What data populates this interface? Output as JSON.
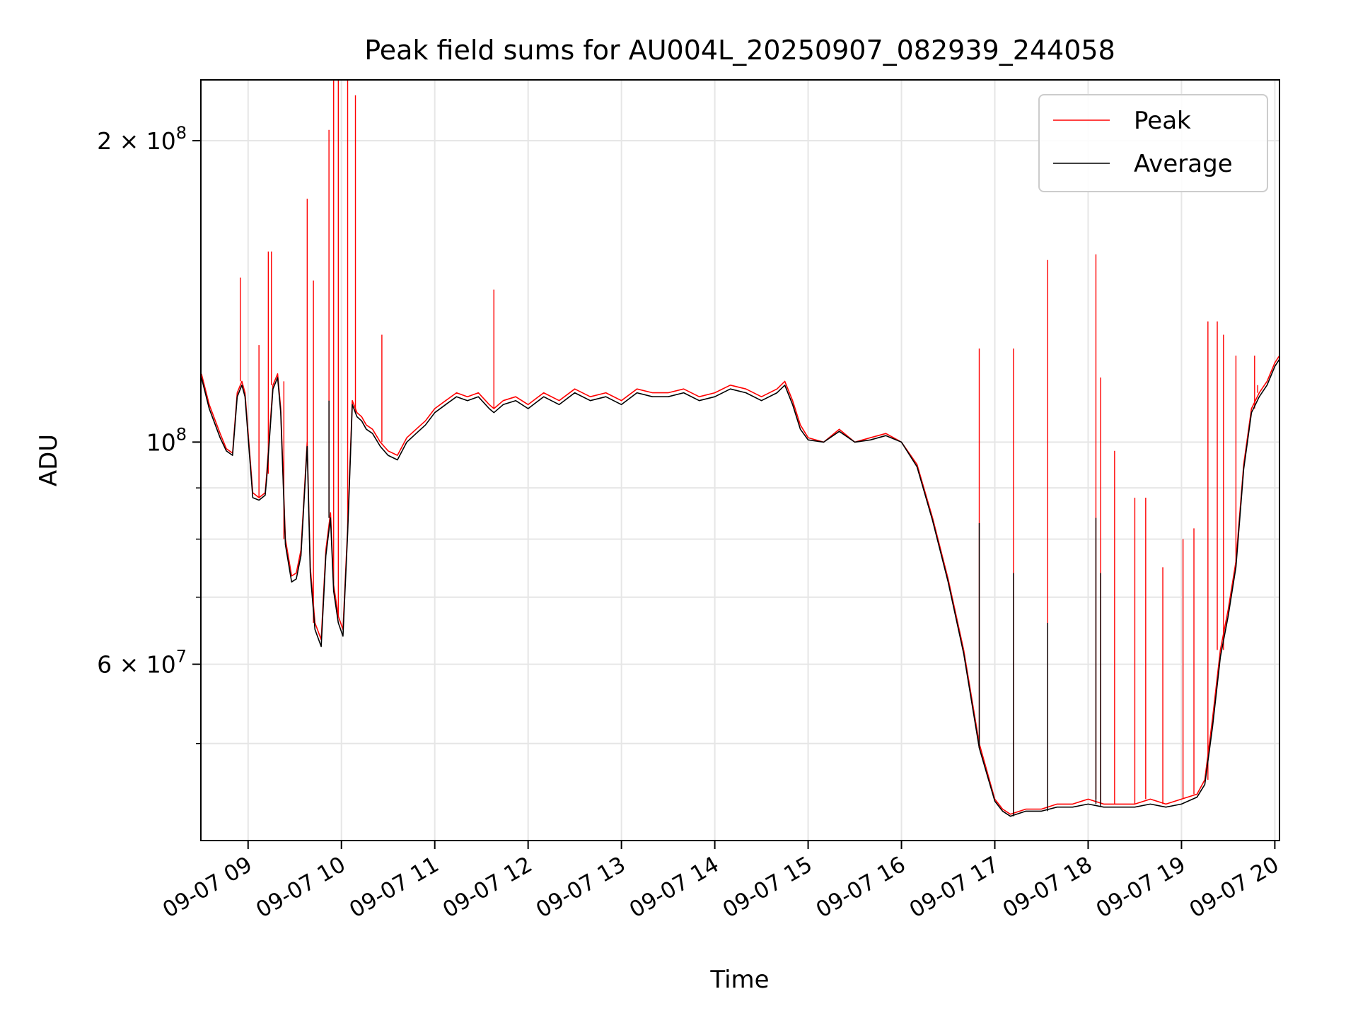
{
  "chart_data": {
    "type": "line",
    "title": "Peak field sums for AU004L_20250907_082939_244058",
    "xlabel": "Time",
    "ylabel": "ADU",
    "y_scale": "log",
    "grid": true,
    "legend_position": "top-right",
    "xlim": [
      "2025-09-07 08:29:39",
      "2025-09-07 20:03:00"
    ],
    "ylim": [
      40000000,
      230000000
    ],
    "x_ticks": [
      {
        "label": "09-07 09",
        "value": "2025-09-07 09:00"
      },
      {
        "label": "09-07 10",
        "value": "2025-09-07 10:00"
      },
      {
        "label": "09-07 11",
        "value": "2025-09-07 11:00"
      },
      {
        "label": "09-07 12",
        "value": "2025-09-07 12:00"
      },
      {
        "label": "09-07 13",
        "value": "2025-09-07 13:00"
      },
      {
        "label": "09-07 14",
        "value": "2025-09-07 14:00"
      },
      {
        "label": "09-07 15",
        "value": "2025-09-07 15:00"
      },
      {
        "label": "09-07 16",
        "value": "2025-09-07 16:00"
      },
      {
        "label": "09-07 17",
        "value": "2025-09-07 17:00"
      },
      {
        "label": "09-07 18",
        "value": "2025-09-07 18:00"
      },
      {
        "label": "09-07 19",
        "value": "2025-09-07 19:00"
      },
      {
        "label": "09-07 20",
        "value": "2025-09-07 20:00"
      }
    ],
    "y_ticks": [
      {
        "mantissa": "2",
        "times": "×",
        "base": "10",
        "exp": "8",
        "value": 200000000
      },
      {
        "mantissa": "",
        "times": "",
        "base": "10",
        "exp": "8",
        "value": 100000000
      },
      {
        "mantissa": "6",
        "times": "×",
        "base": "10",
        "exp": "7",
        "value": 60000000
      }
    ],
    "y_minor_ticks": [
      50000000,
      70000000,
      80000000,
      90000000
    ],
    "series": [
      {
        "name": "Peak",
        "color": "#ff0000",
        "x": [
          "2025-09-07 08:30",
          "2025-09-07 08:35",
          "2025-09-07 08:42",
          "2025-09-07 08:46",
          "2025-09-07 08:50",
          "2025-09-07 08:53",
          "2025-09-07 08:56",
          "2025-09-07 08:58",
          "2025-09-07 09:03",
          "2025-09-07 09:07",
          "2025-09-07 09:11",
          "2025-09-07 09:12",
          "2025-09-07 09:16",
          "2025-09-07 09:19",
          "2025-09-07 09:21",
          "2025-09-07 09:24",
          "2025-09-07 09:28",
          "2025-09-07 09:31",
          "2025-09-07 09:34",
          "2025-09-07 09:38",
          "2025-09-07 09:40",
          "2025-09-07 09:43",
          "2025-09-07 09:47",
          "2025-09-07 09:50",
          "2025-09-07 09:53",
          "2025-09-07 09:55",
          "2025-09-07 09:58",
          "2025-09-07 10:01",
          "2025-09-07 10:04",
          "2025-09-07 10:07",
          "2025-09-07 10:10",
          "2025-09-07 10:13",
          "2025-09-07 10:16",
          "2025-09-07 10:20",
          "2025-09-07 10:25",
          "2025-09-07 10:30",
          "2025-09-07 10:36",
          "2025-09-07 10:42",
          "2025-09-07 10:48",
          "2025-09-07 10:54",
          "2025-09-07 11:00",
          "2025-09-07 11:07",
          "2025-09-07 11:14",
          "2025-09-07 11:21",
          "2025-09-07 11:28",
          "2025-09-07 11:35",
          "2025-09-07 11:38",
          "2025-09-07 11:44",
          "2025-09-07 11:52",
          "2025-09-07 12:00",
          "2025-09-07 12:10",
          "2025-09-07 12:20",
          "2025-09-07 12:30",
          "2025-09-07 12:40",
          "2025-09-07 12:50",
          "2025-09-07 13:00",
          "2025-09-07 13:10",
          "2025-09-07 13:20",
          "2025-09-07 13:30",
          "2025-09-07 13:40",
          "2025-09-07 13:50",
          "2025-09-07 14:00",
          "2025-09-07 14:10",
          "2025-09-07 14:20",
          "2025-09-07 14:30",
          "2025-09-07 14:40",
          "2025-09-07 14:45",
          "2025-09-07 14:50",
          "2025-09-07 14:55",
          "2025-09-07 15:00",
          "2025-09-07 15:10",
          "2025-09-07 15:20",
          "2025-09-07 15:30",
          "2025-09-07 15:40",
          "2025-09-07 15:50",
          "2025-09-07 16:00",
          "2025-09-07 16:10",
          "2025-09-07 16:20",
          "2025-09-07 16:30",
          "2025-09-07 16:40",
          "2025-09-07 16:50",
          "2025-09-07 17:00",
          "2025-09-07 17:05",
          "2025-09-07 17:10",
          "2025-09-07 17:20",
          "2025-09-07 17:30",
          "2025-09-07 17:40",
          "2025-09-07 17:50",
          "2025-09-07 18:00",
          "2025-09-07 18:10",
          "2025-09-07 18:20",
          "2025-09-07 18:30",
          "2025-09-07 18:40",
          "2025-09-07 18:50",
          "2025-09-07 19:00",
          "2025-09-07 19:10",
          "2025-09-07 19:15",
          "2025-09-07 19:20",
          "2025-09-07 19:25",
          "2025-09-07 19:30",
          "2025-09-07 19:35",
          "2025-09-07 19:40",
          "2025-09-07 19:45",
          "2025-09-07 19:50",
          "2025-09-07 19:55",
          "2025-09-07 20:00",
          "2025-09-07 20:03"
        ],
        "values": [
          117000000,
          109000000,
          102000000,
          98500000,
          97500000,
          112000000,
          115000000,
          112000000,
          89000000,
          88000000,
          89000000,
          93000000,
          114000000,
          117000000,
          108000000,
          80000000,
          73500000,
          74000000,
          78000000,
          100000000,
          75000000,
          66000000,
          63500000,
          78000000,
          85000000,
          72000000,
          67000000,
          65000000,
          82000000,
          110000000,
          107000000,
          106000000,
          104000000,
          103000000,
          100000000,
          98000000,
          97000000,
          101000000,
          103000000,
          105000000,
          108000000,
          110000000,
          112000000,
          111000000,
          112000000,
          109000000,
          108000000,
          110000000,
          111000000,
          109000000,
          112000000,
          110000000,
          113000000,
          111000000,
          112000000,
          110000000,
          113000000,
          112000000,
          112000000,
          113000000,
          111000000,
          112000000,
          114000000,
          113000000,
          111000000,
          113000000,
          115000000,
          110000000,
          104000000,
          101000000,
          100000000,
          103000000,
          100000000,
          101000000,
          102000000,
          100000000,
          95000000,
          84000000,
          73000000,
          62000000,
          50000000,
          44000000,
          43000000,
          42500000,
          43000000,
          43000000,
          43500000,
          43500000,
          44000000,
          43500000,
          43500000,
          43500000,
          44000000,
          43500000,
          44000000,
          44500000,
          46000000,
          53000000,
          62000000,
          68000000,
          76000000,
          95000000,
          108000000,
          112000000,
          115000000,
          120000000,
          122000000
        ],
        "spikes": [
          {
            "x": "2025-09-07 08:55",
            "value": 146000000
          },
          {
            "x": "2025-09-07 09:07",
            "value": 125000000
          },
          {
            "x": "2025-09-07 09:13",
            "value": 155000000
          },
          {
            "x": "2025-09-07 09:15",
            "value": 155000000
          },
          {
            "x": "2025-09-07 09:23",
            "value": 115000000
          },
          {
            "x": "2025-09-07 09:38",
            "value": 175000000
          },
          {
            "x": "2025-09-07 09:42",
            "value": 145000000
          },
          {
            "x": "2025-09-07 09:52",
            "value": 205000000
          },
          {
            "x": "2025-09-07 09:55",
            "value": 230000000
          },
          {
            "x": "2025-09-07 09:58",
            "value": 230000000
          },
          {
            "x": "2025-09-07 10:04",
            "value": 230000000
          },
          {
            "x": "2025-09-07 10:09",
            "value": 222000000
          },
          {
            "x": "2025-09-07 10:26",
            "value": 128000000
          },
          {
            "x": "2025-09-07 11:38",
            "value": 142000000
          },
          {
            "x": "2025-09-07 16:50",
            "value": 124000000
          },
          {
            "x": "2025-09-07 17:12",
            "value": 124000000
          },
          {
            "x": "2025-09-07 17:34",
            "value": 152000000
          },
          {
            "x": "2025-09-07 18:05",
            "value": 154000000
          },
          {
            "x": "2025-09-07 18:08",
            "value": 116000000
          },
          {
            "x": "2025-09-07 18:17",
            "value": 98000000
          },
          {
            "x": "2025-09-07 18:30",
            "value": 88000000
          },
          {
            "x": "2025-09-07 18:37",
            "value": 88000000
          },
          {
            "x": "2025-09-07 18:48",
            "value": 75000000
          },
          {
            "x": "2025-09-07 19:01",
            "value": 80000000
          },
          {
            "x": "2025-09-07 19:08",
            "value": 82000000
          },
          {
            "x": "2025-09-07 19:17",
            "value": 132000000
          },
          {
            "x": "2025-09-07 19:23",
            "value": 132000000
          },
          {
            "x": "2025-09-07 19:27",
            "value": 128000000
          },
          {
            "x": "2025-09-07 19:35",
            "value": 122000000
          },
          {
            "x": "2025-09-07 19:47",
            "value": 122000000
          },
          {
            "x": "2025-09-07 19:49",
            "value": 114000000
          }
        ]
      },
      {
        "name": "Average",
        "color": "#000000",
        "x": [
          "2025-09-07 08:30",
          "2025-09-07 08:35",
          "2025-09-07 08:42",
          "2025-09-07 08:46",
          "2025-09-07 08:50",
          "2025-09-07 08:53",
          "2025-09-07 08:56",
          "2025-09-07 08:58",
          "2025-09-07 09:03",
          "2025-09-07 09:07",
          "2025-09-07 09:11",
          "2025-09-07 09:12",
          "2025-09-07 09:16",
          "2025-09-07 09:19",
          "2025-09-07 09:21",
          "2025-09-07 09:24",
          "2025-09-07 09:28",
          "2025-09-07 09:31",
          "2025-09-07 09:34",
          "2025-09-07 09:38",
          "2025-09-07 09:40",
          "2025-09-07 09:43",
          "2025-09-07 09:47",
          "2025-09-07 09:50",
          "2025-09-07 09:53",
          "2025-09-07 09:55",
          "2025-09-07 09:58",
          "2025-09-07 10:01",
          "2025-09-07 10:04",
          "2025-09-07 10:07",
          "2025-09-07 10:10",
          "2025-09-07 10:13",
          "2025-09-07 10:16",
          "2025-09-07 10:20",
          "2025-09-07 10:25",
          "2025-09-07 10:30",
          "2025-09-07 10:36",
          "2025-09-07 10:42",
          "2025-09-07 10:48",
          "2025-09-07 10:54",
          "2025-09-07 11:00",
          "2025-09-07 11:07",
          "2025-09-07 11:14",
          "2025-09-07 11:21",
          "2025-09-07 11:28",
          "2025-09-07 11:35",
          "2025-09-07 11:38",
          "2025-09-07 11:44",
          "2025-09-07 11:52",
          "2025-09-07 12:00",
          "2025-09-07 12:10",
          "2025-09-07 12:20",
          "2025-09-07 12:30",
          "2025-09-07 12:40",
          "2025-09-07 12:50",
          "2025-09-07 13:00",
          "2025-09-07 13:10",
          "2025-09-07 13:20",
          "2025-09-07 13:30",
          "2025-09-07 13:40",
          "2025-09-07 13:50",
          "2025-09-07 14:00",
          "2025-09-07 14:10",
          "2025-09-07 14:20",
          "2025-09-07 14:30",
          "2025-09-07 14:40",
          "2025-09-07 14:45",
          "2025-09-07 14:50",
          "2025-09-07 14:55",
          "2025-09-07 15:00",
          "2025-09-07 15:10",
          "2025-09-07 15:20",
          "2025-09-07 15:30",
          "2025-09-07 15:40",
          "2025-09-07 15:50",
          "2025-09-07 16:00",
          "2025-09-07 16:10",
          "2025-09-07 16:20",
          "2025-09-07 16:30",
          "2025-09-07 16:40",
          "2025-09-07 16:50",
          "2025-09-07 17:00",
          "2025-09-07 17:05",
          "2025-09-07 17:10",
          "2025-09-07 17:20",
          "2025-09-07 17:30",
          "2025-09-07 17:40",
          "2025-09-07 17:50",
          "2025-09-07 18:00",
          "2025-09-07 18:10",
          "2025-09-07 18:20",
          "2025-09-07 18:30",
          "2025-09-07 18:40",
          "2025-09-07 18:50",
          "2025-09-07 19:00",
          "2025-09-07 19:10",
          "2025-09-07 19:15",
          "2025-09-07 19:20",
          "2025-09-07 19:25",
          "2025-09-07 19:30",
          "2025-09-07 19:35",
          "2025-09-07 19:40",
          "2025-09-07 19:45",
          "2025-09-07 19:50",
          "2025-09-07 19:55",
          "2025-09-07 20:00",
          "2025-09-07 20:03"
        ],
        "values": [
          116000000,
          108000000,
          101000000,
          98000000,
          97000000,
          111000000,
          114000000,
          111000000,
          88000000,
          87500000,
          88500000,
          92000000,
          113000000,
          116000000,
          107000000,
          79000000,
          72500000,
          73000000,
          77000000,
          99000000,
          74000000,
          65000000,
          62500000,
          77000000,
          84000000,
          71000000,
          66000000,
          64000000,
          81000000,
          109000000,
          106000000,
          105000000,
          103000000,
          102000000,
          99000000,
          97000000,
          96000000,
          100000000,
          102000000,
          104000000,
          107000000,
          109000000,
          111000000,
          110000000,
          111000000,
          108000000,
          107000000,
          109000000,
          110000000,
          108000000,
          111000000,
          109000000,
          112000000,
          110000000,
          111000000,
          109000000,
          112000000,
          111000000,
          111000000,
          112000000,
          110000000,
          111000000,
          113000000,
          112000000,
          110000000,
          112000000,
          114000000,
          109000000,
          103000000,
          100500000,
          100000000,
          102500000,
          100000000,
          100500000,
          101500000,
          100000000,
          94500000,
          83500000,
          72500000,
          61500000,
          49500000,
          43800000,
          42800000,
          42300000,
          42800000,
          42800000,
          43200000,
          43200000,
          43500000,
          43200000,
          43200000,
          43200000,
          43500000,
          43200000,
          43500000,
          44200000,
          45500000,
          52000000,
          61000000,
          67000000,
          75000000,
          94000000,
          107000000,
          111000000,
          114000000,
          119000000,
          121000000
        ],
        "spikes": [
          {
            "x": "2025-09-07 09:52",
            "value": 110000000
          },
          {
            "x": "2025-09-07 16:50",
            "value": 83000000
          },
          {
            "x": "2025-09-07 17:12",
            "value": 74000000
          },
          {
            "x": "2025-09-07 17:34",
            "value": 66000000
          },
          {
            "x": "2025-09-07 18:05",
            "value": 84000000
          },
          {
            "x": "2025-09-07 18:08",
            "value": 74000000
          }
        ]
      }
    ]
  }
}
